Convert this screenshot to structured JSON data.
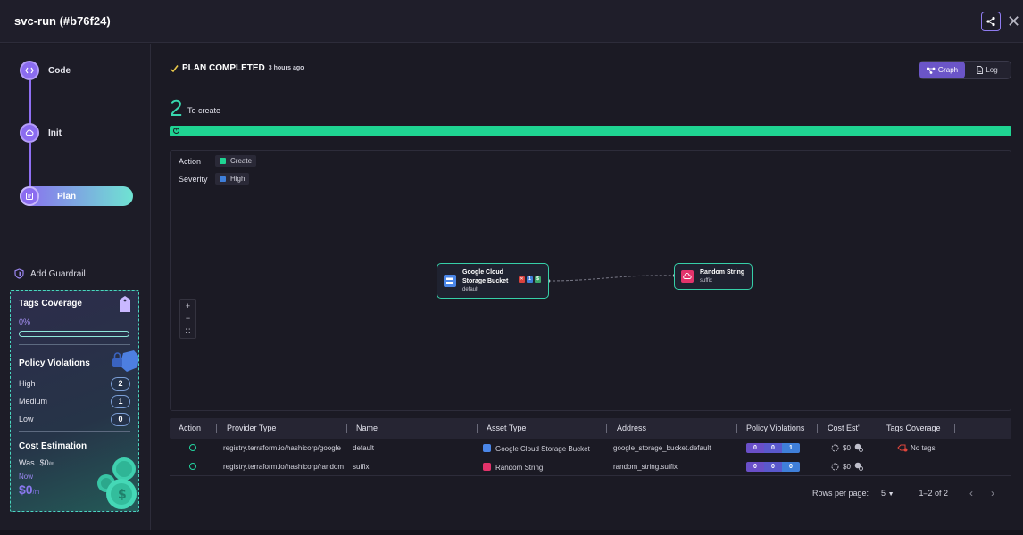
{
  "header": {
    "title": "svc-run (#b76f24)"
  },
  "steps": [
    {
      "label": "Code"
    },
    {
      "label": "Init"
    },
    {
      "label": "Plan"
    }
  ],
  "guardrail": {
    "label": "Add Guardrail"
  },
  "tags_coverage": {
    "title": "Tags Coverage",
    "percent_label": "0%",
    "percent": 0
  },
  "policy_violations": {
    "title": "Policy Violations",
    "rows": [
      {
        "label": "High",
        "count": "2"
      },
      {
        "label": "Medium",
        "count": "1"
      },
      {
        "label": "Low",
        "count": "0"
      }
    ]
  },
  "cost_estimation": {
    "title": "Cost Estimation",
    "was_label": "Was",
    "was_value": "$0",
    "was_unit": "/m",
    "now_label": "Now",
    "now_value": "$0",
    "now_unit": "/m"
  },
  "plan": {
    "status": "PLAN COMPLETED",
    "time": "3 hours ago",
    "create_count": "2",
    "create_label": "To create",
    "create_fraction": 1.0
  },
  "view_toggle": {
    "graph": "Graph",
    "log": "Log",
    "selected": "Graph"
  },
  "legend": {
    "action_label": "Action",
    "action_chip": "Create",
    "severity_label": "Severity",
    "severity_chip": "High",
    "colors": {
      "create": "#1fd492",
      "high": "#3f7fd9"
    }
  },
  "zoom": {
    "plus": "+",
    "minus": "−",
    "fit": "∷"
  },
  "graph_nodes": [
    {
      "name_line1": "Google Cloud",
      "name_line2": "Storage Bucket",
      "sub": "default",
      "pv": [
        "0",
        "1",
        "$"
      ]
    },
    {
      "name_line1": "Random String",
      "sub": "suffix"
    }
  ],
  "table": {
    "columns": [
      "Action",
      "Provider Type",
      "Name",
      "Asset Type",
      "Address",
      "Policy Violations",
      "Cost Est'",
      "Tags Coverage"
    ],
    "rows": [
      {
        "provider": "registry.terraform.io/hashicorp/google",
        "name": "default",
        "asset_type": "Google Cloud Storage Bucket",
        "address": "google_storage_bucket.default",
        "pv": [
          "0",
          "0",
          "1"
        ],
        "cost": "$0",
        "tags": "No tags"
      },
      {
        "provider": "registry.terraform.io/hashicorp/random",
        "name": "suffix",
        "asset_type": "Random String",
        "address": "random_string.suffix",
        "pv": [
          "0",
          "0",
          "0"
        ],
        "cost": "$0",
        "tags": ""
      }
    ]
  },
  "pager": {
    "rows_per_page_label": "Rows per page:",
    "rows_per_page": "5",
    "range": "1–2 of 2"
  }
}
